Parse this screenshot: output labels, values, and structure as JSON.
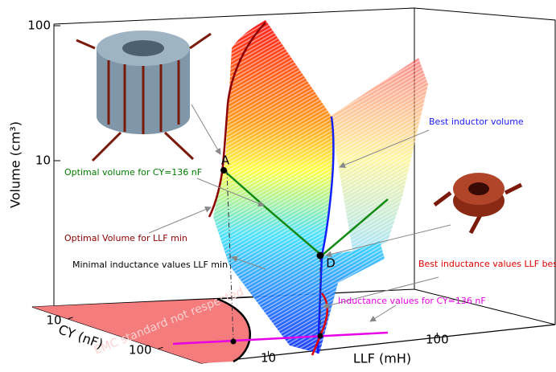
{
  "chart_data": {
    "type": "surface3d",
    "z_label": "Volume (cm³)",
    "x_label": "CY (nF)",
    "y_label": "LLF (mH)",
    "zlim": [
      1,
      100
    ],
    "zticks": [
      10,
      100
    ],
    "xlim": [
      4,
      300
    ],
    "xticks": [
      10,
      100
    ],
    "ylim": [
      4,
      500
    ],
    "yticks": [
      10,
      100
    ],
    "log_scale": true,
    "points": [
      "A",
      "D"
    ],
    "floor_label": "EMC standard not respected",
    "annotations": [
      {
        "text": "Best inductor volume",
        "color": "#1a1aff"
      },
      {
        "text": "Optimal volume for CY=136 nF",
        "color": "#007a00"
      },
      {
        "text": "Optimal Volume for LLF min",
        "color": "#8b0000"
      },
      {
        "text": "Minimal inductance values LLF min",
        "color": "#000000"
      },
      {
        "text": "Best inductance values LLF best",
        "color": "#e00000"
      },
      {
        "text": "Inductance values for CY=136 nF",
        "color": "#e600e6"
      }
    ]
  }
}
